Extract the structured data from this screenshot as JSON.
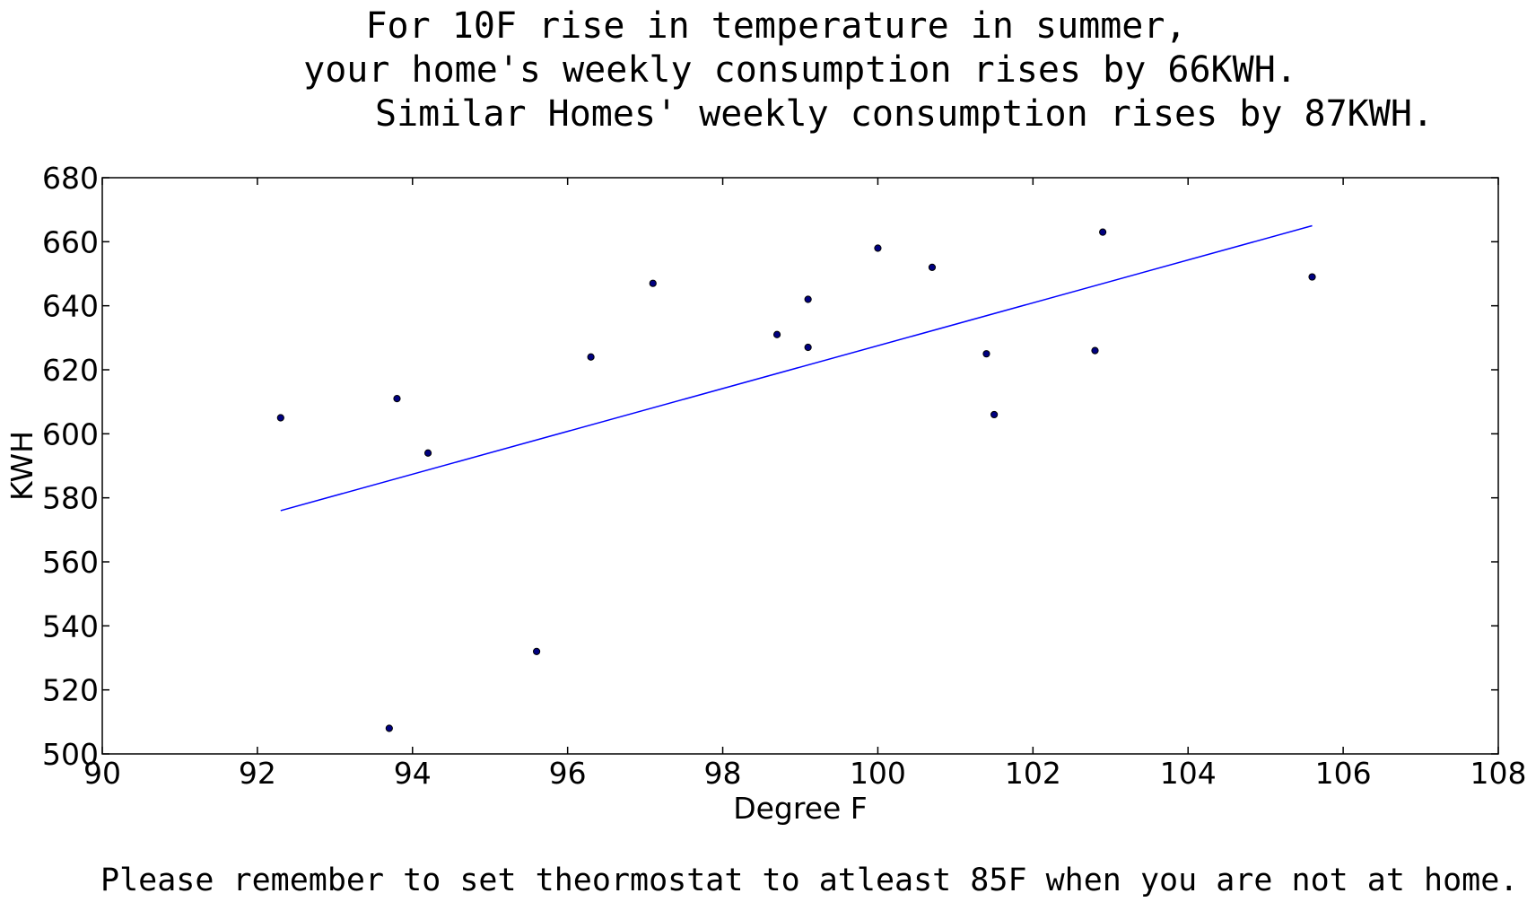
{
  "chart_data": {
    "type": "scatter",
    "title_lines": [
      "For 10F rise in temperature in summer,",
      "your home's weekly consumption rises by 66KWH.",
      "Similar Homes' weekly consumption rises by 87KWH."
    ],
    "xlabel": "Degree F",
    "ylabel": "KWH",
    "xlim": [
      90,
      108
    ],
    "ylim": [
      500,
      680
    ],
    "xticks": [
      90,
      92,
      94,
      96,
      98,
      100,
      102,
      104,
      106,
      108
    ],
    "yticks": [
      500,
      520,
      540,
      560,
      580,
      600,
      620,
      640,
      660,
      680
    ],
    "grid": false,
    "points": [
      {
        "x": 92.3,
        "y": 605
      },
      {
        "x": 93.7,
        "y": 508
      },
      {
        "x": 93.8,
        "y": 611
      },
      {
        "x": 94.2,
        "y": 594
      },
      {
        "x": 95.6,
        "y": 532
      },
      {
        "x": 96.3,
        "y": 624
      },
      {
        "x": 97.1,
        "y": 647
      },
      {
        "x": 98.7,
        "y": 631
      },
      {
        "x": 99.1,
        "y": 642
      },
      {
        "x": 99.1,
        "y": 627
      },
      {
        "x": 100.0,
        "y": 658
      },
      {
        "x": 100.7,
        "y": 652
      },
      {
        "x": 101.4,
        "y": 625
      },
      {
        "x": 101.5,
        "y": 606
      },
      {
        "x": 102.8,
        "y": 626
      },
      {
        "x": 102.9,
        "y": 663
      },
      {
        "x": 105.6,
        "y": 649
      }
    ],
    "trend_line": [
      {
        "x": 92.3,
        "y": 576
      },
      {
        "x": 105.6,
        "y": 665
      }
    ],
    "colors": {
      "points": "#000080",
      "trend_line": "#0000ff",
      "axes": "#000000"
    }
  },
  "footnote": "Please remember to set theormostat to atleast 85F when you are not at home."
}
